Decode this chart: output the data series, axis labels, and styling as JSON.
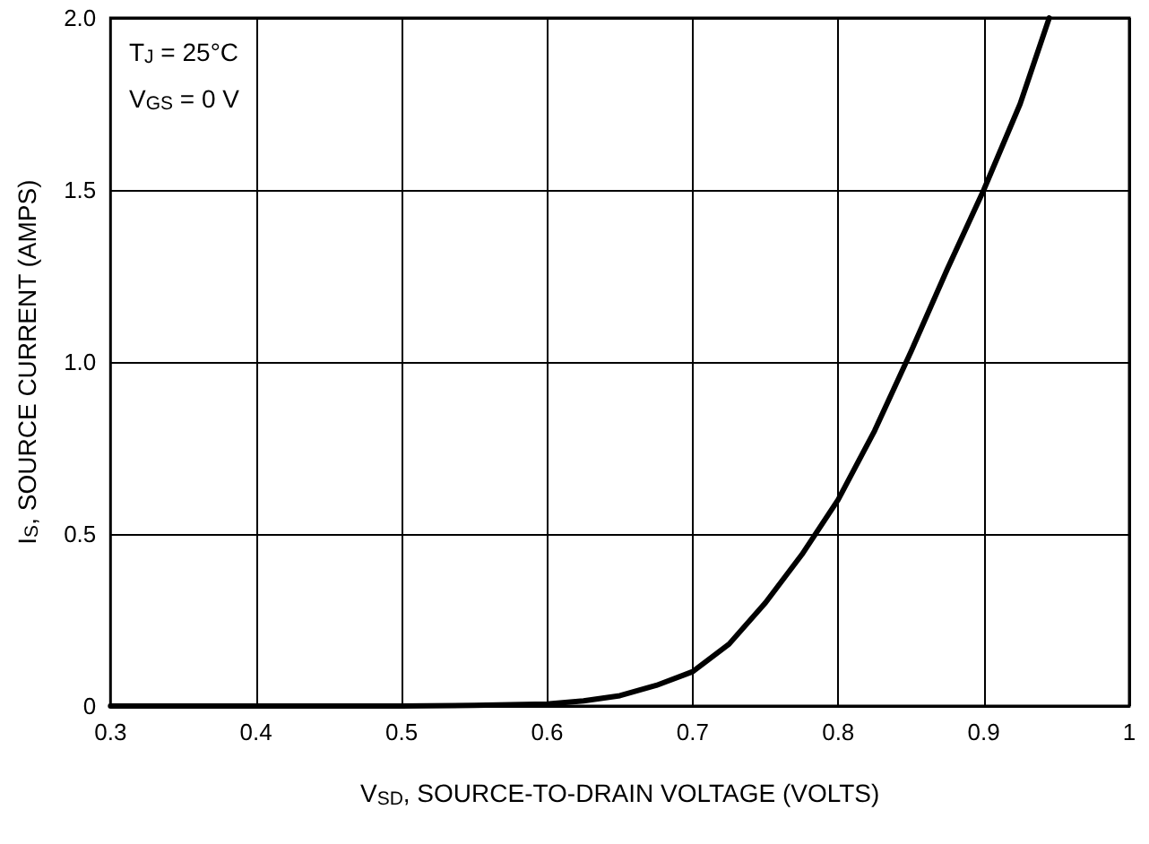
{
  "chart_data": {
    "type": "line",
    "xlabel": "V$_{SD}$, SOURCE-TO-DRAIN VOLTAGE (VOLTS)",
    "ylabel": "I$_{S}$, SOURCE CURRENT (AMPS)",
    "annotations": [
      "T$_{J}$ = 25°C",
      "V$_{GS}$ = 0 V"
    ],
    "series": [
      {
        "color": "#000000",
        "x": [
          0.3,
          0.4,
          0.5,
          0.55,
          0.6,
          0.625,
          0.65,
          0.675,
          0.7,
          0.725,
          0.75,
          0.775,
          0.8,
          0.825,
          0.85,
          0.875,
          0.9,
          0.925,
          0.945
        ],
        "values": [
          0,
          0,
          0,
          0.002,
          0.006,
          0.015,
          0.03,
          0.06,
          0.1,
          0.18,
          0.3,
          0.44,
          0.6,
          0.8,
          1.03,
          1.27,
          1.5,
          1.75,
          2.0
        ]
      }
    ],
    "xlim": [
      0.3,
      1
    ],
    "xticks": [
      0.3,
      0.4,
      0.5,
      0.6,
      0.7,
      0.8,
      0.9,
      1
    ],
    "ylim": [
      0,
      2
    ],
    "yticks": [
      0,
      {
        "value": 0.5,
        "label": "0.5"
      },
      {
        "value": 1,
        "label": "1.0"
      },
      {
        "value": 1.5,
        "label": "1.5"
      },
      {
        "value": 2,
        "label": "2.0"
      }
    ],
    "grid": true,
    "marker": "none",
    "line_style": "solid"
  }
}
